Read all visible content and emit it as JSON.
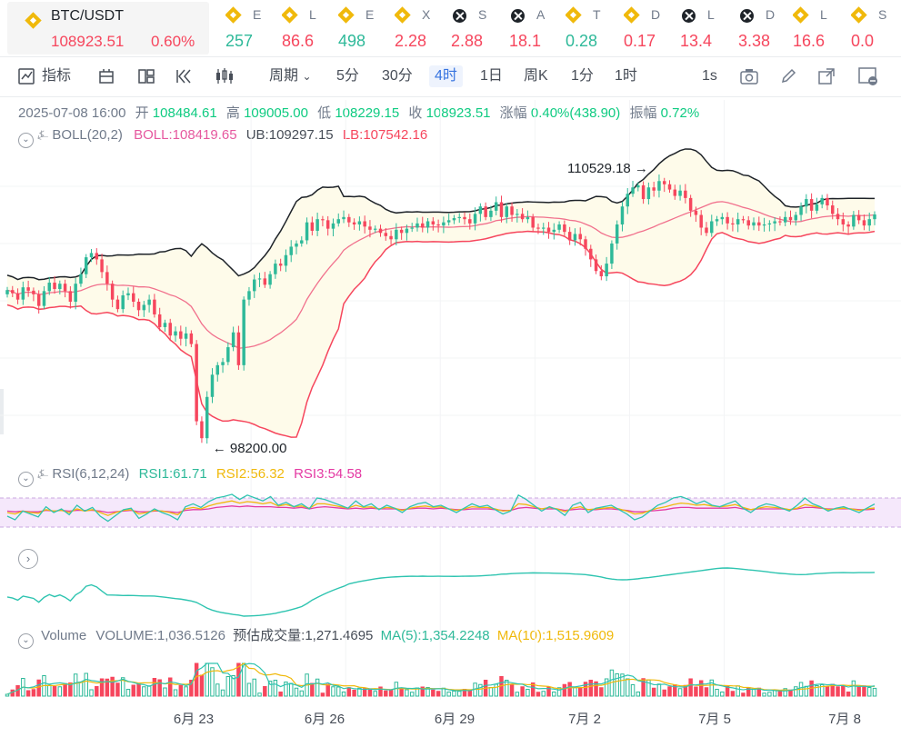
{
  "ticker": {
    "main": {
      "pair": "BTC/USDT",
      "price": "108923.51",
      "change": "0.60%"
    },
    "items": [
      {
        "icon": "bnb-icon",
        "name": "E",
        "value": "257",
        "color": "#2eb999"
      },
      {
        "icon": "bnb-icon",
        "name": "L",
        "value": "86.6",
        "color": "#f6465d"
      },
      {
        "icon": "bnb-icon",
        "name": "E",
        "value": "498",
        "color": "#2eb999"
      },
      {
        "icon": "bnb-icon",
        "name": "X",
        "value": "2.28",
        "color": "#f6465d"
      },
      {
        "icon": "x-icon",
        "name": "S",
        "value": "2.88",
        "color": "#f6465d"
      },
      {
        "icon": "x-icon",
        "name": "A",
        "value": "18.1",
        "color": "#f6465d"
      },
      {
        "icon": "bnb-icon",
        "name": "T",
        "value": "0.28",
        "color": "#2eb999"
      },
      {
        "icon": "bnb-icon",
        "name": "D",
        "value": "0.17",
        "color": "#f6465d"
      },
      {
        "icon": "x-icon",
        "name": "L",
        "value": "13.4",
        "color": "#f6465d"
      },
      {
        "icon": "x-icon",
        "name": "D",
        "value": "3.38",
        "color": "#f6465d"
      },
      {
        "icon": "bnb-icon",
        "name": "L",
        "value": "16.6",
        "color": "#f6465d"
      },
      {
        "icon": "bnb-icon",
        "name": "S",
        "value": "0.0",
        "color": "#f6465d"
      }
    ]
  },
  "toolbar": {
    "indicator": "指标",
    "period": "周期",
    "intervals": [
      "5分",
      "30分",
      "4时",
      "1日",
      "周K",
      "1分",
      "1时"
    ],
    "active_interval": "4时",
    "replay": "1s"
  },
  "ohlc": {
    "datetime": "2025-07-08 16:00",
    "open_label": "开",
    "open": "108484.61",
    "high_label": "高",
    "high": "109005.00",
    "low_label": "低",
    "low": "108229.15",
    "close_label": "收",
    "close": "108923.51",
    "change_label": "涨幅",
    "change": "0.40%(438.90)",
    "amp_label": "振幅",
    "amp": "0.72%"
  },
  "boll": {
    "name": "BOLL(20,2)",
    "mid": "BOLL:108419.65",
    "ub": "UB:109297.15",
    "lb": "LB:107542.16"
  },
  "rsi": {
    "name": "RSI(6,12,24)",
    "rsi1": "RSI1:61.71",
    "rsi2": "RSI2:56.32",
    "rsi3": "RSI3:54.58"
  },
  "volume": {
    "name": "Volume",
    "vol": "VOLUME:1,036.5126",
    "est": "预估成交量:1,271.4695",
    "ma5": "MA(5):1,354.2248",
    "ma10": "MA(10):1,515.9609"
  },
  "colors": {
    "up": "#2eb999",
    "down": "#f6465d",
    "boll_mid": "#f1718d",
    "ub": "#1e2329",
    "band_fill": "#fefbea",
    "rsi1": "#2ec4b0",
    "rsi2": "#f0b90b",
    "rsi3": "#e43aa3",
    "ma5": "#2ec4b0",
    "ma10": "#f0b90b"
  },
  "chart_data": {
    "type": "candlestick",
    "interval": "4h",
    "x_ticks": [
      "6月 23",
      "6月 26",
      "6月 29",
      "7月 2",
      "7月 5",
      "7月 8"
    ],
    "annotations": {
      "max": "110529.18",
      "min": "98200.00"
    },
    "price_range": [
      97800,
      112100
    ],
    "close_series": [
      105350,
      105200,
      104900,
      105480,
      105320,
      105150,
      104600,
      105300,
      105700,
      105400,
      105650,
      105300,
      104800,
      105650,
      106100,
      106900,
      107100,
      106800,
      106200,
      105650,
      104900,
      104450,
      105100,
      105200,
      104800,
      104400,
      104650,
      104900,
      104200,
      103600,
      103800,
      103200,
      103400,
      103050,
      103300,
      102800,
      99150,
      98350,
      100300,
      101350,
      101800,
      101950,
      102650,
      103350,
      101800,
      104900,
      105300,
      105850,
      105900,
      105600,
      106100,
      106600,
      106500,
      107000,
      107400,
      107550,
      107700,
      108550,
      108150,
      108700,
      108650,
      108250,
      108500,
      108700,
      108800,
      108550,
      108450,
      108600,
      108350,
      108200,
      108250,
      108050,
      107900,
      107750,
      108200,
      108050,
      108250,
      108300,
      108500,
      108300,
      108600,
      108450,
      108400,
      108550,
      108650,
      108750,
      108800,
      108700,
      108500,
      108950,
      109300,
      108800,
      109100,
      109500,
      108800,
      109300,
      108900,
      108950,
      108700,
      108800,
      108300,
      108250,
      108300,
      108100,
      108200,
      108450,
      108100,
      107700,
      108000,
      107750,
      107300,
      106800,
      106250,
      106000,
      106600,
      107550,
      108450,
      109300,
      109900,
      110200,
      110300,
      109650,
      110200,
      110050,
      110500,
      110350,
      110100,
      109800,
      110050,
      109700,
      109100,
      108900,
      108300,
      108050,
      108600,
      108700,
      108800,
      108500,
      108450,
      108700,
      108650,
      108400,
      108550,
      108400,
      108450,
      108500,
      108600,
      108550,
      108800,
      108650,
      108900,
      109300,
      109650,
      109100,
      109400,
      109700,
      109350,
      108950,
      108700,
      108450,
      108350,
      108900,
      108650,
      108400,
      108700,
      108923.51
    ],
    "rsi": {
      "rsi1": [
        45,
        40,
        52,
        48,
        44,
        58,
        50,
        55,
        47,
        60,
        52,
        57,
        45,
        38,
        46,
        54,
        56,
        42,
        48,
        55,
        50,
        46,
        40,
        58,
        62,
        57,
        65,
        70,
        72,
        75,
        68,
        74,
        70,
        66,
        72,
        60,
        64,
        58,
        62,
        55,
        70,
        68,
        64,
        60,
        56,
        66,
        58,
        62,
        54,
        60,
        56,
        50,
        58,
        62,
        64,
        58,
        60,
        55,
        50,
        56,
        62,
        58,
        60,
        54,
        48,
        52,
        74,
        68,
        60,
        52,
        58,
        54,
        46,
        60,
        64,
        50,
        56,
        58,
        60,
        54,
        48,
        40,
        44,
        52,
        60,
        64,
        70,
        72,
        68,
        62,
        66,
        60,
        58,
        62,
        66,
        56,
        50,
        58,
        62,
        60,
        56,
        52,
        60,
        70,
        62,
        58,
        52,
        56,
        58,
        54,
        50,
        56,
        61.71
      ],
      "rsi2": [
        50,
        48,
        52,
        50,
        49,
        54,
        52,
        53,
        50,
        55,
        52,
        54,
        50,
        46,
        50,
        53,
        54,
        48,
        50,
        53,
        52,
        50,
        47,
        55,
        57,
        55,
        59,
        62,
        64,
        66,
        63,
        65,
        64,
        62,
        64,
        59,
        61,
        58,
        59,
        56,
        62,
        62,
        60,
        58,
        56,
        60,
        57,
        58,
        55,
        57,
        56,
        53,
        56,
        58,
        59,
        57,
        58,
        55,
        53,
        55,
        58,
        57,
        57,
        55,
        52,
        53,
        62,
        61,
        58,
        55,
        57,
        55,
        51,
        56,
        58,
        54,
        55,
        56,
        57,
        55,
        52,
        48,
        49,
        53,
        56,
        58,
        61,
        63,
        62,
        60,
        61,
        59,
        58,
        59,
        61,
        57,
        54,
        56,
        58,
        57,
        56,
        54,
        56,
        61,
        59,
        57,
        54,
        55,
        56,
        55,
        53,
        55,
        56.32
      ],
      "rsi3": [
        52,
        51,
        52,
        51,
        51,
        53,
        52,
        53,
        52,
        53,
        53,
        53,
        52,
        50,
        51,
        52,
        53,
        51,
        51,
        52,
        52,
        51,
        50,
        53,
        54,
        54,
        55,
        57,
        58,
        59,
        58,
        59,
        58,
        58,
        58,
        57,
        57,
        56,
        57,
        55,
        57,
        58,
        57,
        56,
        55,
        56,
        55,
        56,
        55,
        55,
        55,
        54,
        55,
        56,
        56,
        55,
        56,
        55,
        54,
        54,
        55,
        55,
        55,
        54,
        53,
        53,
        56,
        57,
        56,
        55,
        55,
        55,
        53,
        54,
        55,
        54,
        54,
        55,
        55,
        54,
        53,
        51,
        51,
        52,
        53,
        54,
        56,
        57,
        57,
        56,
        56,
        56,
        56,
        56,
        57,
        55,
        54,
        55,
        55,
        55,
        55,
        54,
        55,
        57,
        57,
        56,
        55,
        55,
        55,
        55,
        54,
        54,
        54.58
      ],
      "bands": [
        30,
        70
      ]
    }
  }
}
